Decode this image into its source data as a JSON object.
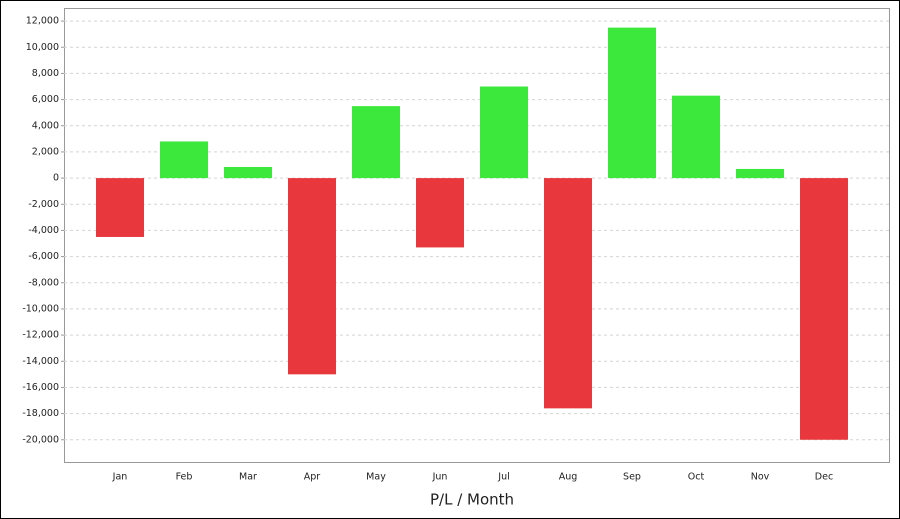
{
  "chart_data": {
    "type": "bar",
    "x_label": "P/L / Month",
    "categories": [
      "Jan",
      "Feb",
      "Mar",
      "Apr",
      "May",
      "Jun",
      "Jul",
      "Aug",
      "Sep",
      "Oct",
      "Nov",
      "Dec"
    ],
    "values": [
      -4500,
      2800,
      850,
      -15000,
      5500,
      -5300,
      7000,
      -17600,
      11500,
      6300,
      700,
      -20000
    ],
    "positive_color": "#3de83d",
    "negative_color": "#e8383d",
    "ylim": [
      -21700,
      13000
    ],
    "yticks": [
      {
        "value": -20000,
        "label": "-20,000"
      },
      {
        "value": -18000,
        "label": "-18,000"
      },
      {
        "value": -16000,
        "label": "-16,000"
      },
      {
        "value": -14000,
        "label": "-14,000"
      },
      {
        "value": -12000,
        "label": "-12,000"
      },
      {
        "value": -10000,
        "label": "-10,000"
      },
      {
        "value": -8000,
        "label": "-8,000"
      },
      {
        "value": -6000,
        "label": "-6,000"
      },
      {
        "value": -4000,
        "label": "-4,000"
      },
      {
        "value": -2000,
        "label": "-2,000"
      },
      0,
      {
        "value": 2000,
        "label": "2,000"
      },
      {
        "value": 4000,
        "label": "4,000"
      },
      {
        "value": 6000,
        "label": "6,000"
      },
      {
        "value": 8000,
        "label": "8,000"
      },
      {
        "value": 10000,
        "label": "10,000"
      },
      {
        "value": 12000,
        "label": "12,000"
      }
    ],
    "grid": true
  }
}
